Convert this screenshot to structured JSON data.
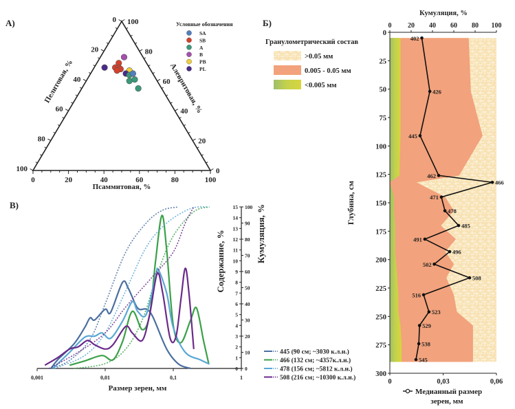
{
  "panels": {
    "a_label": "А)",
    "b_label": "Б)",
    "v_label": "В)"
  },
  "chart_data": [
    {
      "id": "ternary",
      "type": "scatter",
      "subtype": "ternary",
      "axes": {
        "bottom": {
          "label": "Псаммитовая, %",
          "ticks": [
            "0",
            "20",
            "40",
            "60",
            "80",
            "100"
          ]
        },
        "left": {
          "label": "Пелитовая, %",
          "ticks": [
            "0",
            "20",
            "40",
            "60",
            "80",
            "100"
          ]
        },
        "right": {
          "label": "Алевритовая, %",
          "ticks": [
            "100",
            "80",
            "60",
            "40",
            "20",
            "0"
          ]
        }
      },
      "legend": {
        "title": "Условные обозначения",
        "position": "top-right",
        "items": [
          {
            "name": "SA",
            "color": "#4f7fc0"
          },
          {
            "name": "SB",
            "color": "#d8402a"
          },
          {
            "name": "A",
            "color": "#3a9a7a"
          },
          {
            "name": "B",
            "color": "#a54fae"
          },
          {
            "name": "PB",
            "color": "#f2cf3a"
          },
          {
            "name": "PL",
            "color": "#4a2a8a"
          }
        ]
      },
      "points": [
        {
          "group": "B",
          "psammite": 56,
          "pelite": 24,
          "aleurite": 20
        },
        {
          "group": "SB",
          "psammite": 53,
          "pelite": 28,
          "aleurite": 19
        },
        {
          "group": "SB",
          "psammite": 51,
          "pelite": 31,
          "aleurite": 18
        },
        {
          "group": "SB",
          "psammite": 53,
          "pelite": 31,
          "aleurite": 16
        },
        {
          "group": "SB",
          "psammite": 54,
          "pelite": 32,
          "aleurite": 14
        },
        {
          "group": "SB",
          "psammite": 52,
          "pelite": 33,
          "aleurite": 15
        },
        {
          "group": "PL",
          "psammite": 45,
          "pelite": 31,
          "aleurite": 24
        },
        {
          "group": "PB",
          "psammite": 59,
          "pelite": 33,
          "aleurite": 8
        },
        {
          "group": "PL",
          "psammite": 57,
          "pelite": 35,
          "aleurite": 8
        },
        {
          "group": "A",
          "psammite": 59,
          "pelite": 36,
          "aleurite": 5
        },
        {
          "group": "SA",
          "psammite": 61,
          "pelite": 35,
          "aleurite": 4
        },
        {
          "group": "A",
          "psammite": 59,
          "pelite": 40,
          "aleurite": 1
        },
        {
          "group": "A",
          "psammite": 62,
          "pelite": 39,
          "aleurite": -1
        },
        {
          "group": "A",
          "psammite": 64,
          "pelite": 45,
          "aleurite": -9
        }
      ]
    },
    {
      "id": "grain-size",
      "type": "line",
      "xscale": "log",
      "xlabel": "Размер зерен, мм",
      "xticks": [
        "0,001",
        "0,01",
        "0,1",
        "1"
      ],
      "xlim": [
        0.001,
        1
      ],
      "ylabel": "Содержание, %",
      "ylim": [
        0,
        15
      ],
      "yticks": [
        "0",
        "1",
        "2",
        "3",
        "4",
        "5",
        "6",
        "7",
        "8",
        "9",
        "10",
        "11",
        "12",
        "13",
        "14",
        "15"
      ],
      "y2label": "Кумуляция, %",
      "y2lim": [
        0,
        100
      ],
      "y2ticks": [
        "0",
        "10",
        "20",
        "30",
        "40",
        "50",
        "60",
        "70",
        "80",
        "90",
        "100"
      ],
      "legend_position": "bottom-right",
      "series": [
        {
          "name": "445 (90 см; ~3030 к.л.н.)",
          "color": "#4a6fa0",
          "content": [
            [
              0.0016,
              0
            ],
            [
              0.002,
              0.8
            ],
            [
              0.0035,
              2.3
            ],
            [
              0.005,
              3.8
            ],
            [
              0.006,
              4.7
            ],
            [
              0.007,
              4.5
            ],
            [
              0.01,
              5.5
            ],
            [
              0.012,
              5.2
            ],
            [
              0.018,
              8.0
            ],
            [
              0.022,
              7.4
            ],
            [
              0.03,
              5.6
            ],
            [
              0.04,
              5.5
            ],
            [
              0.05,
              4.8
            ],
            [
              0.08,
              1.8
            ],
            [
              0.12,
              0.4
            ],
            [
              0.18,
              0
            ]
          ],
          "cumulative": [
            [
              0.0016,
              0
            ],
            [
              0.003,
              5
            ],
            [
              0.006,
              18
            ],
            [
              0.01,
              40
            ],
            [
              0.02,
              72
            ],
            [
              0.04,
              90
            ],
            [
              0.07,
              98
            ],
            [
              0.12,
              100
            ]
          ]
        },
        {
          "name": "466 (132 см; ~4357к.л.н.)",
          "color": "#3aa048",
          "content": [
            [
              0.003,
              0.3
            ],
            [
              0.005,
              0.7
            ],
            [
              0.009,
              1.2
            ],
            [
              0.013,
              0.8
            ],
            [
              0.018,
              2.5
            ],
            [
              0.025,
              5.3
            ],
            [
              0.035,
              3.6
            ],
            [
              0.045,
              5.0
            ],
            [
              0.055,
              10.0
            ],
            [
              0.068,
              14.2
            ],
            [
              0.08,
              11.0
            ],
            [
              0.1,
              4.0
            ],
            [
              0.13,
              2.4
            ],
            [
              0.18,
              4.5
            ],
            [
              0.22,
              5.6
            ],
            [
              0.28,
              2.5
            ],
            [
              0.33,
              0.5
            ]
          ],
          "cumulative": [
            [
              0.0035,
              0
            ],
            [
              0.01,
              3
            ],
            [
              0.02,
              12
            ],
            [
              0.035,
              30
            ],
            [
              0.06,
              60
            ],
            [
              0.1,
              82
            ],
            [
              0.2,
              97
            ],
            [
              0.34,
              100
            ]
          ]
        },
        {
          "name": "478 (156 см; ~5812 к.л.н.)",
          "color": "#5aa7d4",
          "content": [
            [
              0.0017,
              0
            ],
            [
              0.003,
              1.5
            ],
            [
              0.005,
              2.9
            ],
            [
              0.007,
              3.0
            ],
            [
              0.009,
              3.3
            ],
            [
              0.012,
              2.8
            ],
            [
              0.018,
              4.4
            ],
            [
              0.025,
              6.2
            ],
            [
              0.03,
              5.3
            ],
            [
              0.04,
              5.0
            ],
            [
              0.055,
              8.5
            ],
            [
              0.06,
              9.2
            ],
            [
              0.08,
              7.0
            ],
            [
              0.1,
              3.8
            ],
            [
              0.15,
              1.5
            ],
            [
              0.25,
              0.8
            ],
            [
              0.34,
              0.4
            ]
          ],
          "cumulative": [
            [
              0.0018,
              0
            ],
            [
              0.005,
              8
            ],
            [
              0.01,
              22
            ],
            [
              0.02,
              48
            ],
            [
              0.04,
              75
            ],
            [
              0.08,
              90
            ],
            [
              0.18,
              99
            ],
            [
              0.33,
              100
            ]
          ]
        },
        {
          "name": "508 (216 см; ~10300 к.л.н.)",
          "color": "#6a2a8a",
          "content": [
            [
              0.0013,
              0.3
            ],
            [
              0.002,
              1.0
            ],
            [
              0.003,
              1.8
            ],
            [
              0.004,
              2.0
            ],
            [
              0.0055,
              2.6
            ],
            [
              0.007,
              2.2
            ],
            [
              0.01,
              1.8
            ],
            [
              0.013,
              2.2
            ],
            [
              0.02,
              3.9
            ],
            [
              0.025,
              3.3
            ],
            [
              0.035,
              2.6
            ],
            [
              0.045,
              5.0
            ],
            [
              0.058,
              8.8
            ],
            [
              0.07,
              7.0
            ],
            [
              0.09,
              2.8
            ],
            [
              0.11,
              3.0
            ],
            [
              0.13,
              6.5
            ],
            [
              0.15,
              9.3
            ],
            [
              0.17,
              7.0
            ],
            [
              0.2,
              1.8
            ]
          ],
          "cumulative": [
            [
              0.0015,
              0
            ],
            [
              0.004,
              10
            ],
            [
              0.01,
              22
            ],
            [
              0.02,
              38
            ],
            [
              0.05,
              57
            ],
            [
              0.1,
              72
            ],
            [
              0.15,
              90
            ],
            [
              0.2,
              100
            ]
          ]
        }
      ]
    },
    {
      "id": "core-profile",
      "type": "area",
      "top_xlabel": "Кумуляция, %",
      "top_xticks": [
        "0",
        "20",
        "40",
        "60",
        "80",
        "100"
      ],
      "top_xlim": [
        0,
        100
      ],
      "bottom_xlabel": "Медианный размер зерен, мм",
      "bottom_xticks": [
        "0",
        "0,03",
        "0,06"
      ],
      "bottom_xlim": [
        0,
        0.06
      ],
      "ylabel": "Глубина, см",
      "ylim": [
        0,
        300
      ],
      "yticks": [
        "0",
        "25",
        "50",
        "75",
        "100",
        "125",
        "150",
        "175",
        "200",
        "225",
        "250",
        "275",
        "300"
      ],
      "legend": {
        "title": "Гранулометрический состав",
        "position": "top-left",
        "items": [
          {
            "label": ">0.05 мм",
            "color": "#f6dca6"
          },
          {
            "label": "0.005 - 0.05 мм",
            "color": "#f2a27c"
          },
          {
            "label": "<0.005 мм",
            "color": "#a7c25c"
          }
        ]
      },
      "fractions": {
        "depth": [
          5,
          52,
          91,
          126,
          132,
          145,
          157,
          170,
          182,
          193,
          204,
          216,
          231,
          246,
          258,
          274,
          288
        ],
        "clay_cum": [
          10,
          10,
          10,
          9,
          0,
          4,
          4,
          5,
          5,
          5,
          6,
          7,
          8,
          8,
          10,
          11,
          11
        ],
        "silt_cum": [
          74,
          76,
          87,
          65,
          25,
          52,
          60,
          48,
          62,
          52,
          60,
          53,
          60,
          63,
          78,
          78,
          78
        ]
      },
      "median_series": {
        "name": "Медианный размер зерен, мм",
        "points": [
          {
            "id": "402",
            "depth": 5,
            "value": 0.018
          },
          {
            "id": "426",
            "depth": 52,
            "value": 0.0225
          },
          {
            "id": "445",
            "depth": 91,
            "value": 0.017
          },
          {
            "id": "462",
            "depth": 126,
            "value": 0.0275
          },
          {
            "id": "466",
            "depth": 132,
            "value": 0.0577
          },
          {
            "id": "471",
            "depth": 145,
            "value": 0.029
          },
          {
            "id": "478",
            "depth": 157,
            "value": 0.031
          },
          {
            "id": "485",
            "depth": 170,
            "value": 0.0387
          },
          {
            "id": "491",
            "depth": 182,
            "value": 0.0197
          },
          {
            "id": "496",
            "depth": 193,
            "value": 0.0337
          },
          {
            "id": "502",
            "depth": 204,
            "value": 0.025
          },
          {
            "id": "508",
            "depth": 216,
            "value": 0.0449
          },
          {
            "id": "516",
            "depth": 231,
            "value": 0.019
          },
          {
            "id": "523",
            "depth": 246,
            "value": 0.022
          },
          {
            "id": "529",
            "depth": 258,
            "value": 0.0167
          },
          {
            "id": "538",
            "depth": 274,
            "value": 0.0163
          },
          {
            "id": "545",
            "depth": 288,
            "value": 0.0147
          }
        ]
      }
    }
  ]
}
